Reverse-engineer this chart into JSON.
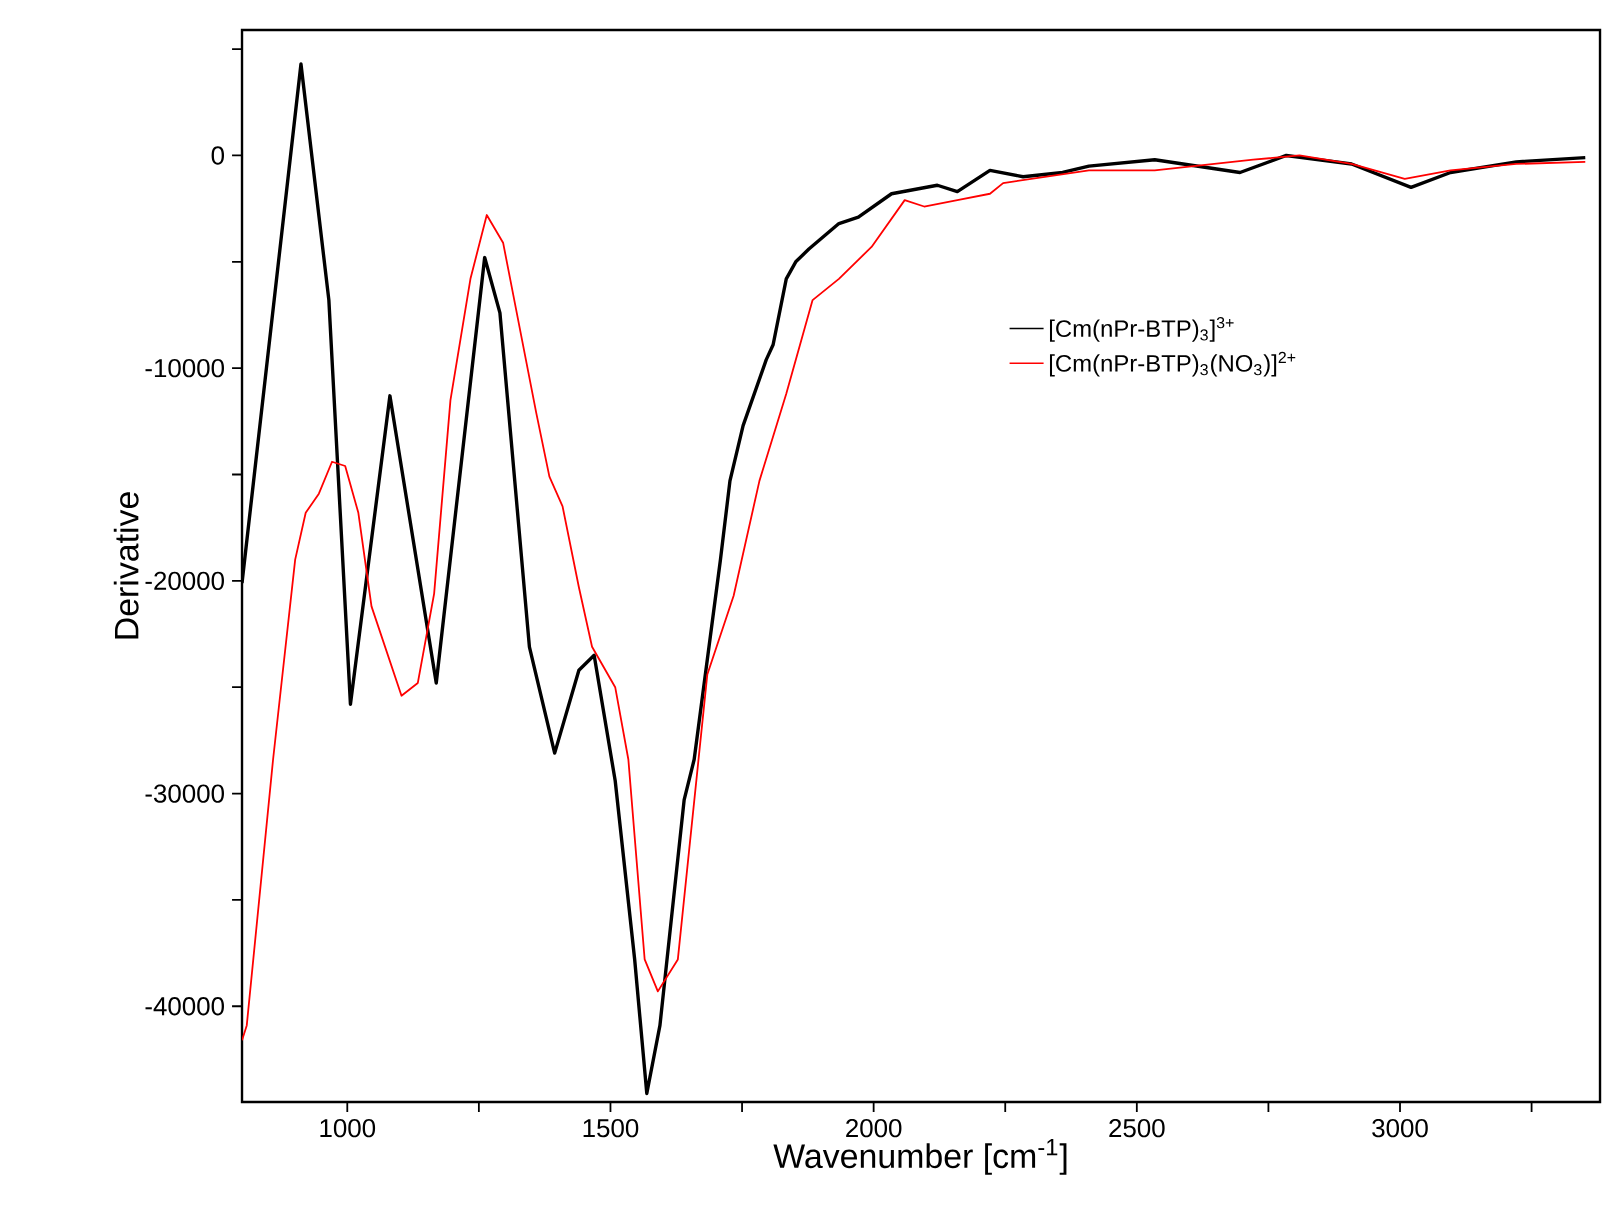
{
  "chart_data": {
    "type": "line",
    "xlabel": "Wavenumber [cm$^{-1}$]",
    "ylabel": "Derivative",
    "xlim": [
      800,
      3380
    ],
    "ylim": [
      -44500,
      5900
    ],
    "xticks": [
      1000,
      {
        "value": 1250,
        "label": null
      },
      1500,
      {
        "value": 1750,
        "label": null
      },
      2000,
      {
        "value": 2250,
        "label": null
      },
      2500,
      {
        "value": 2750,
        "label": null
      },
      3000,
      {
        "value": 3250,
        "label": null
      }
    ],
    "yticks": [
      {
        "value": 5000,
        "label": null
      },
      0,
      {
        "value": -5000,
        "label": null
      },
      -10000,
      {
        "value": -15000,
        "label": null
      },
      -20000,
      {
        "value": -25000,
        "label": null
      },
      -30000,
      {
        "value": -35000,
        "label": null
      },
      -40000
    ],
    "grid": false,
    "legend": "top right",
    "marker": "none",
    "line_style": "solid",
    "series": [
      {
        "name": "[Cm(nPr-BTP)$_{3}$]$^{3+}$",
        "color": "#000000",
        "x": [
          800,
          912,
          965,
          1006,
          1081,
          1169,
          1261,
          1290,
          1346,
          1394,
          1440,
          1469,
          1509,
          1546,
          1569,
          1594,
          1640,
          1659,
          1709,
          1727,
          1752,
          1796,
          1809,
          1834,
          1852,
          1877,
          1934,
          1971,
          2034,
          2121,
          2159,
          2221,
          2284,
          2359,
          2409,
          2534,
          2696,
          2784,
          2908,
          3021,
          3096,
          3221,
          3352
        ],
        "values": [
          -20100,
          4300,
          -6800,
          -25800,
          -11300,
          -24800,
          -4800,
          -7400,
          -23100,
          -28100,
          -24200,
          -23500,
          -29400,
          -37800,
          -44100,
          -40900,
          -30300,
          -28400,
          -19000,
          -15300,
          -12700,
          -9600,
          -8900,
          -5800,
          -5000,
          -4400,
          -3200,
          -2900,
          -1800,
          -1400,
          -1700,
          -700,
          -1000,
          -800,
          -500,
          -200,
          -800,
          0,
          -400,
          -1500,
          -800,
          -300,
          -100
        ]
      },
      {
        "name": "[Cm(nPr-BTP)$_{3}$(NO$_{3}$)]$^{2+}$",
        "color": "#ff0000",
        "x": [
          800,
          809,
          859,
          901,
          921,
          946,
          971,
          996,
          1021,
          1046,
          1103,
          1134,
          1165,
          1196,
          1234,
          1265,
          1296,
          1359,
          1384,
          1409,
          1440,
          1465,
          1509,
          1534,
          1565,
          1590,
          1628,
          1684,
          1734,
          1783,
          1834,
          1884,
          1934,
          1996,
          2059,
          2096,
          2159,
          2221,
          2246,
          2409,
          2534,
          2721,
          2809,
          2908,
          3009,
          3096,
          3221,
          3352
        ],
        "values": [
          -41600,
          -40900,
          -28400,
          -19000,
          -16800,
          -15900,
          -14400,
          -14600,
          -16800,
          -21200,
          -25400,
          -24800,
          -20600,
          -11500,
          -5800,
          -2800,
          -4100,
          -12100,
          -15100,
          -16500,
          -20300,
          -23100,
          -25000,
          -28400,
          -37800,
          -39300,
          -37800,
          -24400,
          -20700,
          -15300,
          -11200,
          -6800,
          -5800,
          -4300,
          -2100,
          -2400,
          -2100,
          -1800,
          -1300,
          -700,
          -700,
          -200,
          0,
          -400,
          -1100,
          -700,
          -400,
          -300
        ]
      }
    ]
  }
}
